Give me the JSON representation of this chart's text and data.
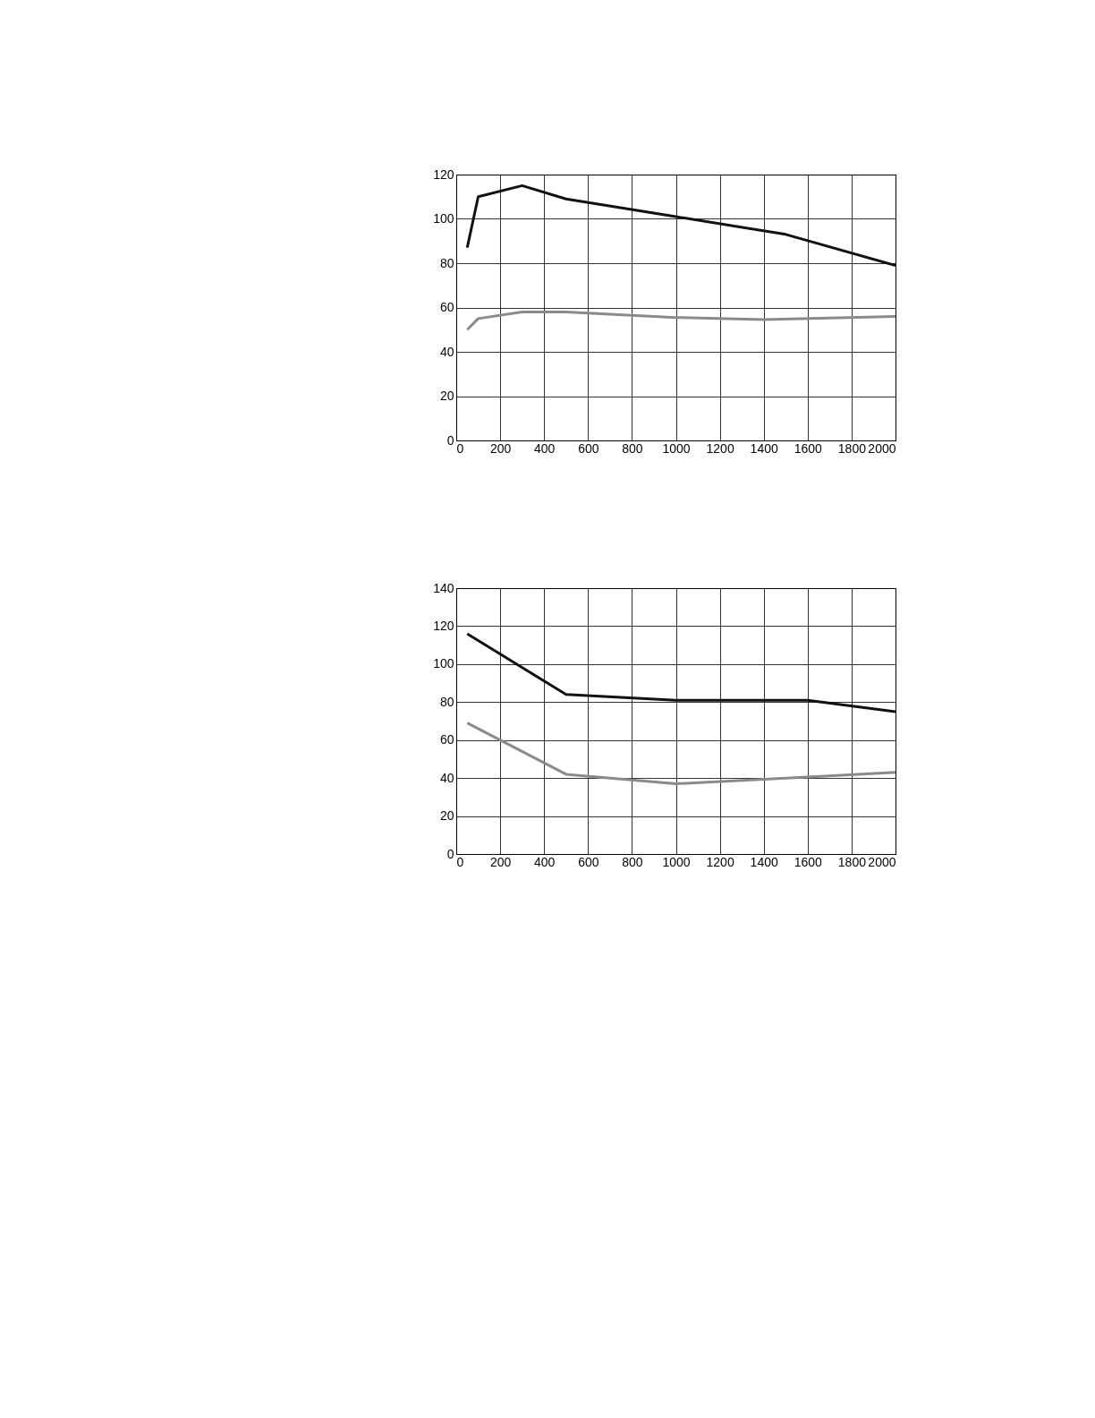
{
  "chart_data": [
    {
      "type": "line",
      "xlim": [
        0,
        2000
      ],
      "ylim": [
        0,
        120
      ],
      "xticks": [
        0,
        200,
        400,
        600,
        800,
        1000,
        1200,
        1400,
        1600,
        1800,
        2000
      ],
      "yticks": [
        0,
        20,
        40,
        60,
        80,
        100,
        120
      ],
      "grid": true,
      "legend": false,
      "line_style": "solid",
      "series": [
        {
          "color": "#111111",
          "x": [
            50,
            100,
            300,
            500,
            1000,
            1500,
            2000
          ],
          "values": [
            87,
            110,
            115,
            109,
            101,
            93,
            79
          ]
        },
        {
          "color": "#8a8a8a",
          "x": [
            50,
            100,
            300,
            500,
            1000,
            1400,
            2000
          ],
          "values": [
            50,
            55,
            58,
            58,
            55.5,
            54.5,
            56
          ]
        }
      ]
    },
    {
      "type": "line",
      "xlim": [
        0,
        2000
      ],
      "ylim": [
        0,
        140
      ],
      "xticks": [
        0,
        200,
        400,
        600,
        800,
        1000,
        1200,
        1400,
        1600,
        1800,
        2000
      ],
      "yticks": [
        0,
        20,
        40,
        60,
        80,
        100,
        120,
        140
      ],
      "grid": true,
      "legend": false,
      "line_style": "solid",
      "series": [
        {
          "color": "#111111",
          "x": [
            50,
            500,
            1000,
            1600,
            2000
          ],
          "values": [
            116,
            84,
            81,
            81,
            75
          ]
        },
        {
          "color": "#8a8a8a",
          "x": [
            50,
            500,
            1000,
            1600,
            2000
          ],
          "values": [
            69,
            42,
            37,
            40.5,
            43
          ]
        }
      ]
    }
  ]
}
